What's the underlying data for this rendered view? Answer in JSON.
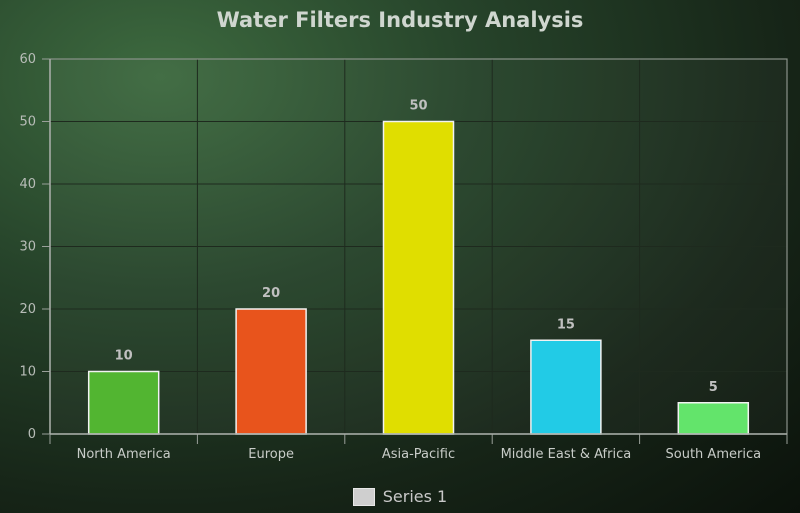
{
  "chart_data": {
    "type": "bar",
    "title": "Water Filters Industry Analysis",
    "categories": [
      "North America",
      "Europe",
      "Asia-Pacific",
      "Middle East & Africa",
      "South America"
    ],
    "series": [
      {
        "name": "Series 1",
        "values": [
          10,
          20,
          50,
          15,
          5
        ]
      }
    ],
    "bar_colors": [
      "#52b531",
      "#e8541c",
      "#e0de00",
      "#22cbe6",
      "#63e46b"
    ],
    "ylim": [
      0,
      60
    ],
    "yticks": [
      0,
      10,
      20,
      30,
      40,
      50,
      60
    ],
    "xlabel": "",
    "ylabel": "",
    "grid": true,
    "legend_position": "bottom"
  }
}
